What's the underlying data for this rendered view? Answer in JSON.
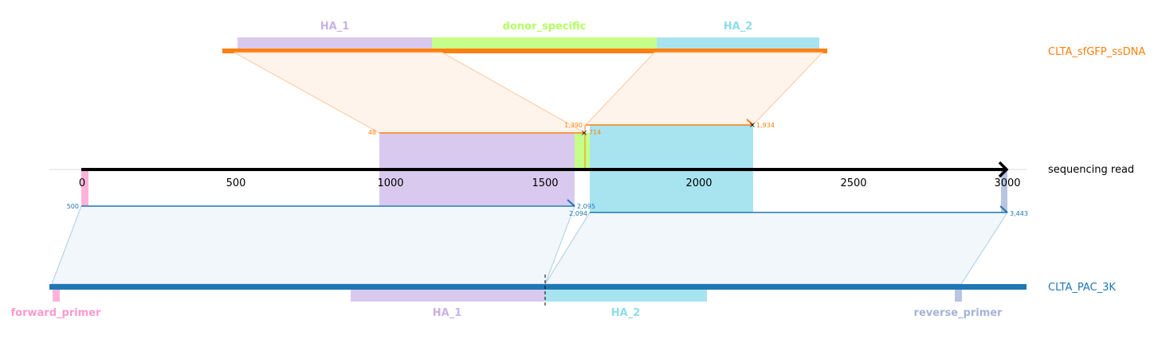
{
  "axis": {
    "label": "sequencing read",
    "ticks": [
      "0",
      "500",
      "1000",
      "1500",
      "2000",
      "2500",
      "3000"
    ]
  },
  "top_track": {
    "name": "CLTA_sfGFP_ssDNA",
    "color": "#ff7f0e",
    "features": [
      {
        "name": "HA_1",
        "color": "#c7b3e5"
      },
      {
        "name": "donor_specific",
        "color": "#b3ff66"
      },
      {
        "name": "HA_2",
        "color": "#8fdcea"
      }
    ]
  },
  "bottom_track": {
    "name": "CLTA_PAC_3K",
    "color": "#1f77b4",
    "features": [
      {
        "name": "forward_primer",
        "color": "#ff99cc"
      },
      {
        "name": "HA_1",
        "color": "#c7b3e5"
      },
      {
        "name": "HA_2",
        "color": "#8fdcea"
      },
      {
        "name": "reverse_primer",
        "color": "#a4b4d6"
      }
    ]
  },
  "alignment_labels": {
    "top_a_start": "48",
    "top_a_end": "714",
    "top_b_start": "1,390",
    "top_b_end": "1,934",
    "bottom_a_start": "500",
    "bottom_a_end": "2,095",
    "bottom_b_start": "2,094",
    "bottom_b_end": "3,443"
  }
}
